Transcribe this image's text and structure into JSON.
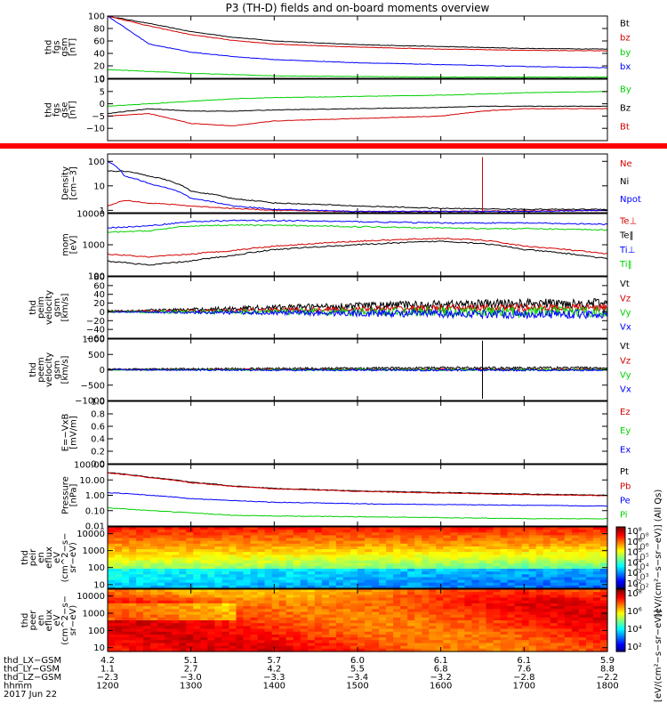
{
  "title": "P3 (TH-D) fields and on-board moments overview",
  "colors": {
    "black": "#000000",
    "red": "#d40000",
    "green": "#00d000",
    "blue": "#0000ff",
    "orange": "#f4a020",
    "red_band": "#ff0000"
  },
  "chart_data": [
    {
      "type": "line",
      "panel": "fgs_gsm_1",
      "ylabel": [
        "thd",
        "fgs",
        "gsm",
        "[nT]"
      ],
      "ylim": [
        0,
        100
      ],
      "yticks": [
        0,
        20,
        40,
        60,
        80,
        100
      ],
      "ytick_labels": [
        "0",
        "20",
        "40",
        "60",
        "80",
        "100"
      ],
      "x": [
        12.0,
        12.5,
        13.0,
        13.5,
        14.0,
        15.0,
        16.0,
        17.0,
        18.0
      ],
      "series": [
        {
          "name": "Bt",
          "color": "black",
          "values": [
            100,
            88,
            75,
            66,
            60,
            54,
            51,
            48,
            47
          ]
        },
        {
          "name": "bz",
          "color": "red",
          "values": [
            100,
            84,
            70,
            61,
            55,
            50,
            47,
            45,
            44
          ]
        },
        {
          "name": "by",
          "color": "green",
          "values": [
            14,
            11,
            8,
            6,
            4,
            3,
            2,
            2,
            2
          ]
        },
        {
          "name": "bx",
          "color": "blue",
          "values": [
            100,
            55,
            42,
            35,
            30,
            25,
            22,
            19,
            17
          ]
        }
      ]
    },
    {
      "type": "line",
      "panel": "fgs_gse",
      "ylabel": [
        "thd",
        "fgs",
        "gse",
        "[nT]"
      ],
      "ylim": [
        -15,
        10
      ],
      "yticks": [
        -10,
        -5,
        0,
        5,
        10
      ],
      "ytick_labels": [
        "−10",
        "−5",
        "0",
        "5",
        "10"
      ],
      "x": [
        12.0,
        12.5,
        13.0,
        13.5,
        14.0,
        15.0,
        16.0,
        16.5,
        17.0,
        18.0
      ],
      "series": [
        {
          "name": "By",
          "color": "green",
          "values": [
            -1,
            0,
            1,
            2,
            2.5,
            3,
            3.5,
            4,
            4.5,
            5
          ]
        },
        {
          "name": "Bz",
          "color": "black",
          "values": [
            -4,
            -2,
            -3,
            -3,
            -2.5,
            -2,
            -1.5,
            -1,
            -1,
            -1
          ]
        },
        {
          "name": "Bt",
          "color": "red",
          "values": [
            -5,
            -4,
            -8,
            -9,
            -7,
            -6,
            -5,
            -3,
            -2,
            -2
          ]
        }
      ],
      "legend_entries": [
        "By",
        "Bz",
        "Bt"
      ]
    },
    {
      "type": "line",
      "panel": "density",
      "ylabel": [
        "Density",
        "[cm−3]"
      ],
      "yscale": "log",
      "ylim": [
        0.8,
        200
      ],
      "yticks": [
        1,
        10,
        100
      ],
      "ytick_labels": [
        "1",
        "10",
        "100"
      ],
      "x": [
        12.0,
        12.2,
        12.5,
        13.0,
        13.5,
        14.0,
        15.0,
        16.0,
        17.0,
        18.0
      ],
      "series": [
        {
          "name": "Ne",
          "color": "red",
          "values": [
            1.5,
            2.5,
            2.0,
            1.5,
            1.2,
            1.0,
            0.9,
            0.9,
            0.95,
            1.0
          ]
        },
        {
          "name": "Ni",
          "color": "black",
          "values": [
            40,
            40,
            25,
            6,
            3,
            2,
            1.5,
            1.2,
            1.1,
            1.1
          ]
        },
        {
          "name": "Npot",
          "color": "blue",
          "values": [
            100,
            25,
            12,
            3,
            1.5,
            1.1,
            0.9,
            0.9,
            0.9,
            1.0
          ]
        }
      ],
      "spike": {
        "x": 16.5,
        "color": "red",
        "to": 150
      }
    },
    {
      "type": "line",
      "panel": "temperature",
      "ylabel": [
        "mom",
        "[eV]"
      ],
      "yscale": "log",
      "ylim": [
        100,
        10000
      ],
      "yticks": [
        100,
        1000,
        10000
      ],
      "ytick_labels": [
        "100",
        "1000",
        "10000"
      ],
      "x": [
        12.0,
        12.5,
        13.0,
        13.5,
        14.0,
        15.0,
        16.0,
        16.5,
        17.0,
        18.0
      ],
      "series": [
        {
          "name": "Te⊥",
          "color": "red",
          "values": [
            500,
            400,
            500,
            650,
            900,
            1300,
            1600,
            1400,
            900,
            500
          ]
        },
        {
          "name": "Te‖",
          "color": "black",
          "values": [
            300,
            220,
            300,
            450,
            700,
            1000,
            1300,
            1100,
            700,
            350
          ]
        },
        {
          "name": "Ti⊥",
          "color": "blue",
          "values": [
            3500,
            4000,
            5500,
            6000,
            6000,
            5500,
            5000,
            5000,
            5000,
            4500
          ]
        },
        {
          "name": "Ti‖",
          "color": "green",
          "values": [
            2500,
            2800,
            4000,
            4300,
            4200,
            3800,
            3500,
            3300,
            3300,
            3000
          ]
        }
      ]
    },
    {
      "type": "line",
      "panel": "peim_velocity",
      "ylabel": [
        "thd",
        "peim",
        "velocity",
        "gsm",
        "[km/s]"
      ],
      "ylim": [
        -60,
        80
      ],
      "yticks": [
        -60,
        -40,
        -20,
        0,
        20,
        40,
        60,
        80
      ],
      "ytick_labels": [
        "−60",
        "−40",
        "−20",
        "0",
        "20",
        "40",
        "60",
        "80"
      ],
      "x": [
        12.0,
        13.0,
        14.0,
        15.0,
        16.0,
        17.0,
        18.0
      ],
      "noise": true,
      "series": [
        {
          "name": "Vt",
          "color": "black",
          "values": [
            2,
            5,
            10,
            14,
            17,
            19,
            20
          ],
          "amp": [
            2,
            4,
            6,
            8,
            10,
            11,
            11
          ]
        },
        {
          "name": "Vz",
          "color": "red",
          "values": [
            1,
            2,
            4,
            6,
            8,
            9,
            10
          ],
          "amp": [
            2,
            3,
            5,
            7,
            8,
            9,
            9
          ]
        },
        {
          "name": "Vy",
          "color": "green",
          "values": [
            0,
            0,
            0,
            0,
            0,
            0,
            0
          ],
          "amp": [
            2,
            4,
            6,
            9,
            11,
            12,
            12
          ]
        },
        {
          "name": "Vx",
          "color": "blue",
          "values": [
            0,
            -1,
            -2,
            -3,
            -4,
            -5,
            -5
          ],
          "amp": [
            1,
            3,
            5,
            8,
            9,
            10,
            10
          ]
        }
      ]
    },
    {
      "type": "line",
      "panel": "peem_velocity",
      "ylabel": [
        "thd",
        "peem",
        "velocity",
        "gsm",
        "[km/s]"
      ],
      "ylim": [
        -1000,
        1000
      ],
      "yticks": [
        -1000,
        -500,
        0,
        500,
        1000
      ],
      "ytick_labels": [
        "−1000",
        "−500",
        "0",
        "500",
        "1000"
      ],
      "x": [
        12.0,
        14.0,
        16.0,
        18.0
      ],
      "noise": true,
      "series": [
        {
          "name": "Vt",
          "color": "black",
          "values": [
            20,
            40,
            60,
            60
          ],
          "amp": [
            20,
            30,
            40,
            40
          ]
        },
        {
          "name": "Vz",
          "color": "red",
          "values": [
            0,
            10,
            10,
            10
          ],
          "amp": [
            20,
            25,
            30,
            30
          ]
        },
        {
          "name": "Vy",
          "color": "green",
          "values": [
            0,
            0,
            0,
            0
          ],
          "amp": [
            20,
            25,
            30,
            30
          ]
        },
        {
          "name": "Vx",
          "color": "blue",
          "values": [
            0,
            -10,
            -10,
            -10
          ],
          "amp": [
            20,
            25,
            30,
            30
          ]
        }
      ],
      "spike": {
        "x": 16.5,
        "color": "black",
        "to": 950
      }
    },
    {
      "type": "line",
      "panel": "efield",
      "ylabel": [
        "E=−VxB",
        "[mV/m]"
      ],
      "ylim": [
        0,
        1
      ],
      "yticks": [
        0,
        0.2,
        0.4,
        0.6,
        0.8,
        1.0
      ],
      "ytick_labels": [
        "0.0",
        "0.2",
        "0.4",
        "0.6",
        "0.8",
        "1.0"
      ],
      "x": [],
      "series": [
        {
          "name": "Ez",
          "color": "red",
          "values": []
        },
        {
          "name": "Ey",
          "color": "green",
          "values": []
        },
        {
          "name": "Ex",
          "color": "blue",
          "values": []
        }
      ]
    },
    {
      "type": "line",
      "panel": "pressure",
      "ylabel": [
        "Pressure",
        "[nPa]"
      ],
      "yscale": "log",
      "ylim": [
        0.01,
        100
      ],
      "yticks": [
        0.01,
        0.1,
        1,
        10,
        100
      ],
      "ytick_labels": [
        "0.01",
        "0.10",
        "1.00",
        "10.00",
        "100.00"
      ],
      "x": [
        12.0,
        12.5,
        13.0,
        13.5,
        14.0,
        15.0,
        16.0,
        17.0,
        18.0
      ],
      "series": [
        {
          "name": "Pt",
          "color": "black",
          "values": [
            30,
            15,
            7,
            4,
            2.8,
            1.9,
            1.5,
            1.2,
            1.0
          ]
        },
        {
          "name": "Pb",
          "color": "red",
          "values": [
            28,
            14,
            6.5,
            3.8,
            2.6,
            1.8,
            1.4,
            1.1,
            0.95
          ]
        },
        {
          "name": "Pe",
          "color": "blue",
          "values": [
            1.5,
            1.0,
            0.6,
            0.45,
            0.35,
            0.28,
            0.25,
            0.22,
            0.2
          ]
        },
        {
          "name": "Pi",
          "color": "green",
          "values": [
            0.15,
            0.1,
            0.07,
            0.05,
            0.045,
            0.04,
            0.035,
            0.03,
            0.03
          ]
        }
      ]
    },
    {
      "type": "heatmap",
      "panel": "peir_en_eflux",
      "ylabel": [
        "thd",
        "peir",
        "en",
        "eflux",
        "eV",
        "(cm^2−s−",
        "sr−eV)"
      ],
      "yscale": "log",
      "ylim": [
        6,
        25000
      ],
      "yticks": [
        10,
        100,
        1000,
        10000
      ],
      "ytick_labels": [
        "10",
        "100",
        "1000",
        "10000"
      ],
      "zscale": "log",
      "zlim": [
        100,
        1000000
      ],
      "colorbar_ticks": [
        "10⁸",
        "10⁶",
        "10⁵",
        "10⁴",
        "10³",
        "10²"
      ],
      "colorbar_label": "[eV/(cm²−s−sr−eV)] (All Qs)",
      "colorbar_overlay": [
        "10⁸",
        "10⁶",
        "10⁵",
        "10⁴",
        "10³",
        "10²"
      ]
    },
    {
      "type": "heatmap",
      "panel": "peer_en_eflux",
      "ylabel": [
        "thd",
        "peer",
        "en",
        "eflux",
        "eV",
        "(cm^2−s−",
        "sr−eV)"
      ],
      "yscale": "log",
      "ylim": [
        6,
        25000
      ],
      "yticks": [
        10,
        100,
        1000,
        10000
      ],
      "ytick_labels": [
        "10",
        "100",
        "1000",
        "10000"
      ],
      "zscale": "log",
      "zlim": [
        100,
        100000000
      ],
      "colorbar_ticks": [
        "10⁸",
        "10⁶",
        "10⁴",
        "10²"
      ],
      "colorbar_label": "[eV/(cm²−s−sr−eV)]"
    }
  ],
  "xaxis": {
    "xlim": [
      12.0,
      18.0
    ],
    "ticks": [
      12,
      13,
      14,
      15,
      16,
      17,
      18
    ],
    "rows": [
      {
        "label": "thd_LX−GSM",
        "values": [
          "4.2",
          "5.1",
          "5.7",
          "6.0",
          "6.1",
          "6.1",
          "5.9"
        ]
      },
      {
        "label": "thd_LY−GSM",
        "values": [
          "1.1",
          "2.7",
          "4.2",
          "5.5",
          "6.8",
          "7.6",
          "8.8"
        ]
      },
      {
        "label": "thd_LZ−GSM",
        "values": [
          "−2.3",
          "−3.0",
          "−3.3",
          "−3.4",
          "−3.2",
          "−2.8",
          "−2.2"
        ]
      },
      {
        "label": "hhmm",
        "values": [
          "1200",
          "1300",
          "1400",
          "1500",
          "1600",
          "1700",
          "1800"
        ]
      }
    ],
    "date": "2017 Jun 22"
  }
}
